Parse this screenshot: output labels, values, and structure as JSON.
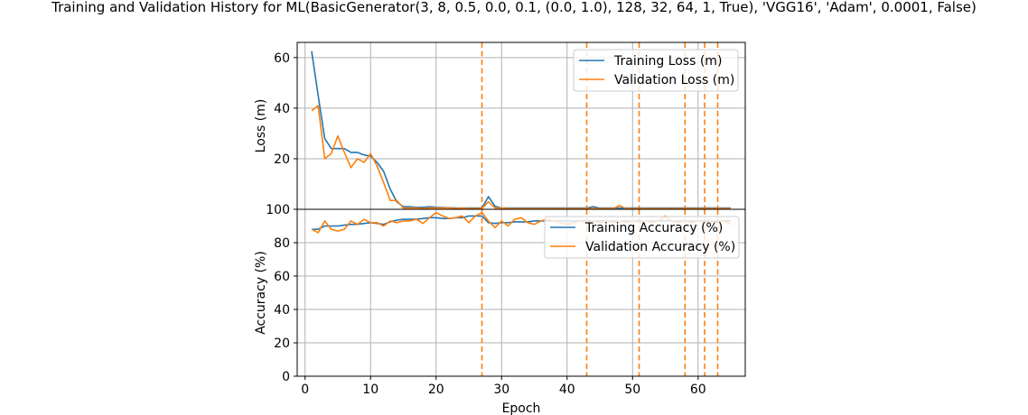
{
  "title": "Training and Validation History for ML(BasicGenerator(3, 8, 0.5, 0.0, 0.1, (0.0, 1.0), 128, 32, 64, 1, True), 'VGG16', 'Adam', 0.0001, False)",
  "colors": {
    "series1": "#1f77b4",
    "series2": "#ff7f0e",
    "grid": "#b0b0b0"
  },
  "chart_data": [
    {
      "type": "line",
      "ylabel": "Loss (m)",
      "xlim": [
        -1.2,
        67.2
      ],
      "ylim": [
        0,
        66
      ],
      "yticks": [
        20,
        40,
        60
      ],
      "grid": true,
      "legend_position": "upper right",
      "vlines": [
        27,
        43,
        51,
        58,
        61,
        63
      ],
      "series": [
        {
          "name": "Training Loss (m)",
          "x": [
            1,
            2,
            3,
            4,
            5,
            6,
            7,
            8,
            9,
            10,
            11,
            12,
            13,
            14,
            15,
            16,
            17,
            18,
            19,
            20,
            21,
            22,
            23,
            24,
            25,
            26,
            27,
            28,
            29,
            30,
            31,
            32,
            33,
            34,
            35,
            36,
            37,
            38,
            39,
            40,
            41,
            42,
            43,
            44,
            45,
            46,
            47,
            48,
            49,
            50,
            51,
            52,
            53,
            54,
            55,
            56,
            57,
            58,
            59,
            60,
            61,
            62,
            63,
            64,
            65
          ],
          "values": [
            62.5,
            45,
            28,
            24,
            24,
            24,
            22.5,
            22.5,
            21.5,
            21,
            18.5,
            15,
            8,
            3,
            1,
            1,
            0.8,
            0.8,
            1,
            0.8,
            0.7,
            0.6,
            0.5,
            0.5,
            0.5,
            0.5,
            0.5,
            5,
            1.2,
            0.5,
            0.5,
            0.5,
            0.5,
            0.5,
            0.5,
            0.5,
            0.5,
            0.5,
            0.5,
            0.5,
            0.5,
            0.5,
            0.5,
            1,
            0.5,
            0.5,
            0.5,
            0.5,
            0.5,
            0.5,
            0.5,
            0.5,
            0.5,
            0.5,
            0.5,
            0.5,
            0.5,
            0.5,
            0.5,
            0.5,
            0.5,
            0.5,
            0.5,
            0.5,
            0.5
          ]
        },
        {
          "name": "Validation Loss (m)",
          "x": [
            1,
            2,
            3,
            4,
            5,
            6,
            7,
            8,
            9,
            10,
            11,
            12,
            13,
            14,
            15,
            16,
            17,
            18,
            19,
            20,
            21,
            22,
            23,
            24,
            25,
            26,
            27,
            28,
            29,
            30,
            31,
            32,
            33,
            34,
            35,
            36,
            37,
            38,
            39,
            40,
            41,
            42,
            43,
            44,
            45,
            46,
            47,
            48,
            49,
            50,
            51,
            52,
            53,
            54,
            55,
            56,
            57,
            58,
            59,
            60,
            61,
            62,
            63,
            64,
            65
          ],
          "values": [
            39,
            41,
            20,
            22,
            29,
            22.5,
            16.5,
            20,
            18.5,
            22,
            17,
            10.5,
            3.5,
            3.5,
            0.5,
            0.5,
            0.5,
            0.3,
            0.5,
            0.5,
            0.5,
            0.5,
            0.3,
            0.5,
            0.3,
            0.3,
            0.3,
            3,
            0.5,
            0.5,
            0.3,
            0.3,
            0.3,
            0.3,
            0.3,
            0.3,
            0.3,
            0.3,
            0.3,
            0.3,
            0.3,
            0.3,
            0.3,
            0.3,
            0.3,
            0.3,
            0.3,
            1.5,
            0.3,
            0.3,
            0.3,
            0.3,
            0.3,
            0.3,
            0.3,
            0.3,
            0.3,
            0.3,
            0.3,
            0.3,
            0.3,
            0.3,
            0.3,
            0.3,
            0.3
          ]
        }
      ]
    },
    {
      "type": "line",
      "xlabel": "Epoch",
      "ylabel": "Accuracy (%)",
      "xlim": [
        -1.2,
        67.2
      ],
      "ylim": [
        0,
        100
      ],
      "xticks": [
        0,
        10,
        20,
        30,
        40,
        50,
        60
      ],
      "yticks": [
        0,
        20,
        40,
        60,
        80,
        100
      ],
      "grid": true,
      "legend_position": "upper right",
      "vlines": [
        27,
        43,
        51,
        58,
        61,
        63
      ],
      "series": [
        {
          "name": "Training Accuracy (%)",
          "x": [
            1,
            2,
            3,
            4,
            5,
            6,
            7,
            8,
            9,
            10,
            11,
            12,
            13,
            14,
            15,
            16,
            17,
            18,
            19,
            20,
            21,
            22,
            23,
            24,
            25,
            26,
            27,
            28,
            29,
            30,
            31,
            32,
            33,
            34,
            35,
            36,
            37,
            38,
            39,
            40,
            41,
            42,
            43,
            44,
            45,
            46,
            47,
            48,
            49,
            50,
            51,
            52,
            53,
            54,
            55,
            56,
            57,
            58,
            59,
            60,
            61,
            62,
            63,
            64,
            65
          ],
          "values": [
            88,
            88,
            90,
            90,
            90,
            90.5,
            91,
            91,
            91.5,
            92,
            91.5,
            91,
            92.5,
            93.5,
            94,
            94,
            94,
            94.5,
            95,
            95,
            94.5,
            94.5,
            95,
            95,
            96,
            96,
            96,
            92,
            91.5,
            92,
            92,
            92.5,
            92.5,
            92.5,
            93,
            93,
            93,
            93,
            93,
            93,
            93,
            93,
            93,
            93,
            93,
            93,
            93,
            93,
            93,
            93,
            93,
            93,
            93,
            93,
            93,
            93,
            93,
            93,
            93,
            93,
            93,
            93,
            93,
            93,
            93
          ]
        },
        {
          "name": "Validation Accuracy (%)",
          "x": [
            1,
            2,
            3,
            4,
            5,
            6,
            7,
            8,
            9,
            10,
            11,
            12,
            13,
            14,
            15,
            16,
            17,
            18,
            19,
            20,
            21,
            22,
            23,
            24,
            25,
            26,
            27,
            28,
            29,
            30,
            31,
            32,
            33,
            34,
            35,
            36,
            37,
            38,
            39,
            40,
            41,
            42,
            43,
            44,
            45,
            46,
            47,
            48,
            49,
            50,
            51,
            52,
            53,
            54,
            55,
            56,
            57,
            58,
            59,
            60,
            61,
            62,
            63,
            64,
            65
          ],
          "values": [
            88,
            86,
            93,
            88,
            87,
            88,
            93,
            91,
            94,
            92,
            92,
            90,
            93,
            92,
            93,
            93,
            94,
            91.5,
            95,
            98,
            96,
            94.5,
            95,
            96,
            92,
            96,
            98,
            93,
            89,
            93,
            90,
            94,
            95,
            92,
            91,
            93,
            94,
            93,
            92,
            91,
            92,
            93,
            92,
            93,
            92,
            93,
            92,
            93,
            92,
            93,
            92,
            93,
            92,
            93,
            96,
            93,
            92,
            93,
            92,
            93,
            92,
            93,
            92,
            93,
            91
          ]
        }
      ]
    }
  ]
}
